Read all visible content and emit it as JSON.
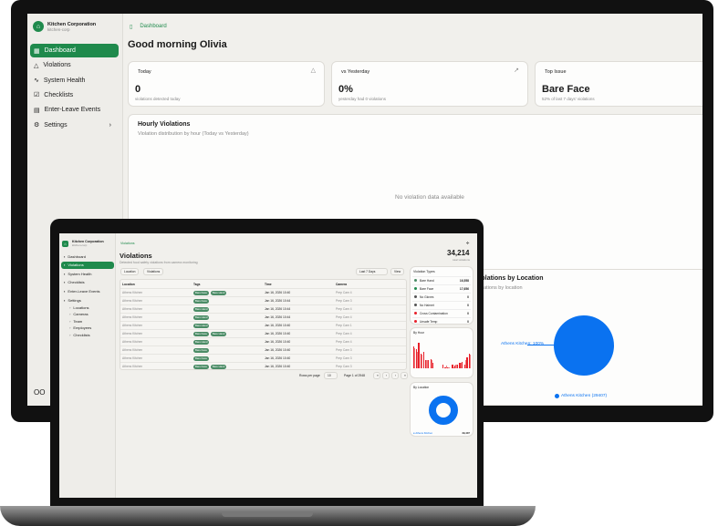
{
  "accent": "#1f8a4c",
  "chart_color": "#0a72f0",
  "bar_colors": [
    "#e8202a",
    "#f07a7e"
  ],
  "monitor": {
    "org": "Kitchen Corporation",
    "org_slug": "kitchen-corp",
    "nav": [
      {
        "label": "Dashboard",
        "icon": "grid-icon",
        "active": true
      },
      {
        "label": "Violations",
        "icon": "warning-icon"
      },
      {
        "label": "System Health",
        "icon": "pulse-icon"
      },
      {
        "label": "Checklists",
        "icon": "checkbox-icon"
      },
      {
        "label": "Enter-Leave Events",
        "icon": "calendar-icon"
      },
      {
        "label": "Settings",
        "icon": "gear-icon"
      }
    ],
    "breadcrumb": "Dashboard",
    "greeting": "Good morning Olivia",
    "stats": [
      {
        "label": "Today",
        "value": "0",
        "sub": "violations detected today",
        "icon": "warning-icon"
      },
      {
        "label": "vs Yesterday",
        "value": "0%",
        "sub": "yesterday had 0 violations",
        "icon": "trend-icon"
      },
      {
        "label": "Top Issue",
        "value": "Bare Face",
        "sub": "52% of last 7 days' violations"
      }
    ],
    "hourly": {
      "title": "Hourly Violations",
      "subtitle": "Violation distribution by hour (Today vs Yesterday)",
      "empty": "No violation data available"
    },
    "location": {
      "title": "Violations by Location",
      "subtitle": "Violations by location",
      "slice_label": "Athens Kitchen: 100%",
      "legend": "Athens Kitchen (29407)",
      "share": 100
    },
    "user_initials": "OO"
  },
  "laptop": {
    "org": "Kitchen Corporation",
    "org_slug": "kitchen-corp",
    "nav": [
      {
        "label": "Dashboard"
      },
      {
        "label": "Violations",
        "active": true
      },
      {
        "label": "System Health"
      },
      {
        "label": "Checklists"
      },
      {
        "label": "Enter-Leave Events"
      },
      {
        "label": "Settings"
      }
    ],
    "settings_sub": [
      "Locations",
      "Cameras",
      "Team",
      "Employees",
      "Checklists"
    ],
    "breadcrumb": "Violations",
    "title": "Violations",
    "subtitle": "Detected food safety violations from camera monitoring",
    "total": "34,214",
    "total_label": "total violations",
    "filters": [
      "Location",
      "Violations"
    ],
    "range": "Last 7 Days",
    "view": "View",
    "columns": [
      "Location",
      "Tags",
      "Time",
      "Camera"
    ],
    "rows": [
      {
        "loc": "Athens Kitchen",
        "tags": [
          "Bare Face",
          "Bare Hand"
        ],
        "time": "Jan 16, 2026 10:40",
        "cam": "Prep Cam 4"
      },
      {
        "loc": "Athens Kitchen",
        "tags": [
          "Bare Face"
        ],
        "time": "Jan 16, 2026 10:44",
        "cam": "Prep Cam 3"
      },
      {
        "loc": "Athens Kitchen",
        "tags": [
          "Bare Hand"
        ],
        "time": "Jan 16, 2026 10:44",
        "cam": "Prep Cam 4"
      },
      {
        "loc": "Athens Kitchen",
        "tags": [
          "Bare Hand"
        ],
        "time": "Jan 16, 2026 10:44",
        "cam": "Prep Cam 4"
      },
      {
        "loc": "Athens Kitchen",
        "tags": [
          "Bare Hand"
        ],
        "time": "Jan 16, 2026 10:40",
        "cam": "Prep Cam 1"
      },
      {
        "loc": "Athens Kitchen",
        "tags": [
          "Bare Face",
          "Bare Hand"
        ],
        "time": "Jan 16, 2026 10:40",
        "cam": "Prep Cam 4"
      },
      {
        "loc": "Athens Kitchen",
        "tags": [
          "Bare Hand"
        ],
        "time": "Jan 16, 2026 10:40",
        "cam": "Prep Cam 4"
      },
      {
        "loc": "Athens Kitchen",
        "tags": [
          "Bare Face"
        ],
        "time": "Jan 16, 2026 10:40",
        "cam": "Prep Cam 3"
      },
      {
        "loc": "Athens Kitchen",
        "tags": [
          "Bare Face"
        ],
        "time": "Jan 16, 2026 10:40",
        "cam": "Prep Cam 3"
      },
      {
        "loc": "Athens Kitchen",
        "tags": [
          "Bare Face",
          "Bare Hand"
        ],
        "time": "Jan 16, 2026 10:40",
        "cam": "Prep Cam 3"
      }
    ],
    "rows_per_page_label": "Rows per page",
    "rows_per_page": "10",
    "page_info": "Page 1 of 2948",
    "types_title": "Violation Types",
    "types": [
      {
        "name": "Bare Hand",
        "count": "16,558",
        "color": "#4b8c66"
      },
      {
        "name": "Bare Face",
        "count": "17,656",
        "color": "#1f8a4c"
      },
      {
        "name": "No Gloves",
        "count": "0",
        "color": "#555"
      },
      {
        "name": "No Hairnet",
        "count": "0",
        "color": "#555"
      },
      {
        "name": "Cross Contamination",
        "count": "0",
        "color": "#e8202a"
      },
      {
        "name": "Unsafe Temp",
        "count": "0",
        "color": "#e8202a"
      }
    ],
    "by_hour_title": "By Hour",
    "by_hour": {
      "a": [
        80,
        70,
        95,
        55,
        60,
        30,
        30,
        35,
        20,
        0,
        0,
        0,
        15,
        5,
        3,
        0,
        15,
        10,
        15,
        20,
        25,
        15,
        40,
        55
      ],
      "b": [
        75,
        60,
        0,
        50,
        0,
        30,
        0,
        30,
        0,
        0,
        0,
        0,
        0,
        10,
        3,
        0,
        5,
        15,
        0,
        20,
        0,
        30,
        0,
        50
      ]
    },
    "by_location_title": "By Location",
    "by_location_legend": "Athens Kitchen",
    "by_location_count": "29,407"
  }
}
